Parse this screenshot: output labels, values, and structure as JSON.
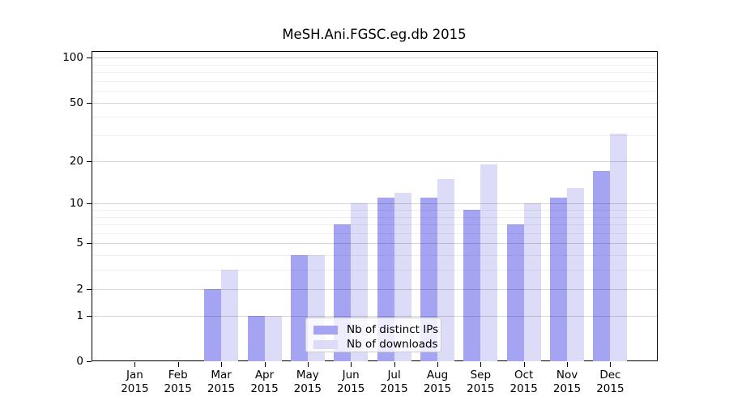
{
  "chart_data": {
    "type": "bar",
    "title": "MeSH.Ani.FGSC.eg.db 2015",
    "categories": [
      "Jan",
      "Feb",
      "Mar",
      "Apr",
      "May",
      "Jun",
      "Jul",
      "Aug",
      "Sep",
      "Oct",
      "Nov",
      "Dec"
    ],
    "category_year_line": "2015",
    "series": [
      {
        "name": "Nb of distinct IPs",
        "color": "#a4a4f3",
        "values": [
          0,
          0,
          2,
          1,
          4,
          7,
          11,
          11,
          9,
          7,
          11,
          17
        ]
      },
      {
        "name": "Nb of downloads",
        "color": "#dcdcf9",
        "values": [
          0,
          0,
          3,
          1,
          4,
          10,
          12,
          15,
          19,
          10,
          13,
          31
        ]
      }
    ],
    "y_axis": {
      "scale": "log10(value+1)",
      "tick_values": [
        100,
        50,
        20,
        10,
        5,
        2,
        1,
        0
      ],
      "tick_labels": [
        "100",
        "50",
        "20",
        "10",
        "5",
        "2",
        "1",
        "0"
      ],
      "minor_grid_values": [
        3,
        4,
        6,
        7,
        8,
        9,
        30,
        40,
        60,
        70,
        80,
        90
      ],
      "major_grid_values": [
        1,
        2,
        5,
        10,
        20,
        50,
        100
      ],
      "ylim": [
        0,
        110
      ]
    },
    "grid": "on",
    "legend_position": "lower-center",
    "colors": {
      "axis": "#000000",
      "major_grid": "rgba(0,0,0,0.16)",
      "minor_grid": "rgba(0,0,0,0.06)",
      "legend_border": "#cccccc",
      "legend_background": "rgba(255,255,255,0.8)"
    }
  }
}
